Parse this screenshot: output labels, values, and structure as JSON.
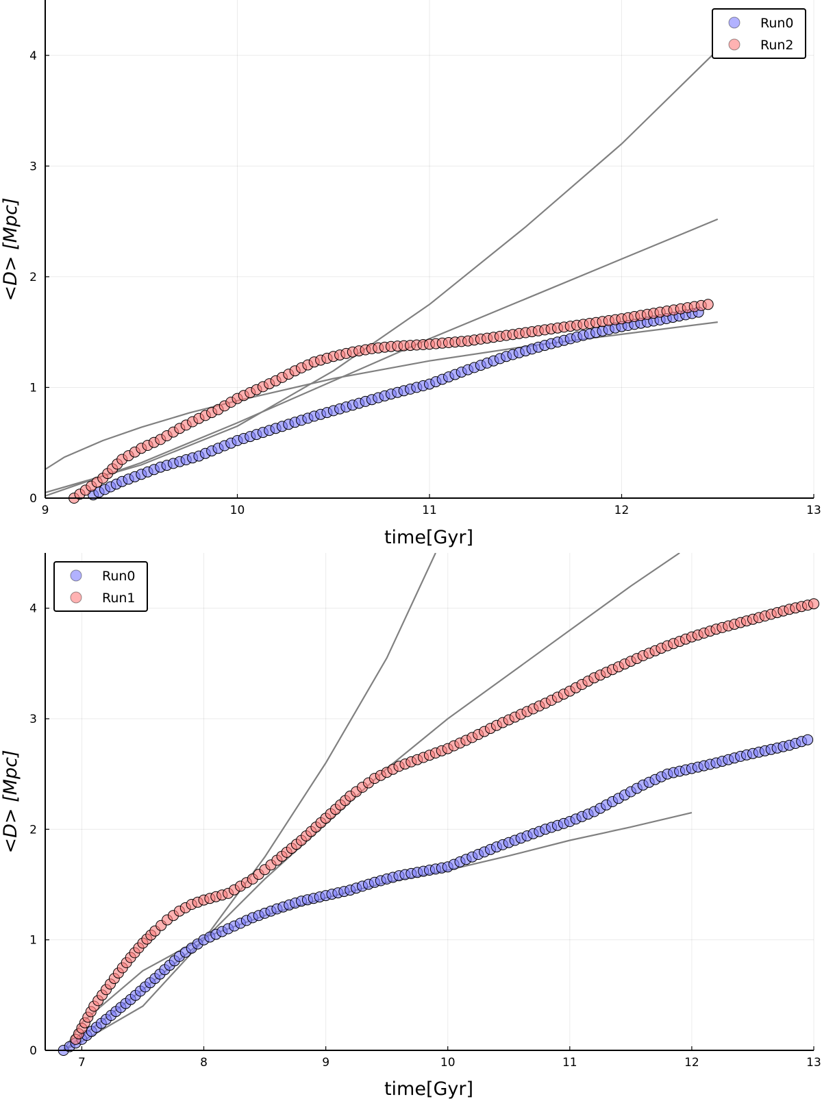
{
  "chart_data": [
    {
      "type": "scatter",
      "xlabel": "time[Gyr]",
      "ylabel": "<D> [Mpc]",
      "xlim": [
        9,
        13
      ],
      "ylim": [
        0,
        4.5
      ],
      "xticks": [
        "9",
        "10",
        "11",
        "12",
        "13"
      ],
      "yticks": [
        "0",
        "1",
        "2",
        "3",
        "4"
      ],
      "grid": true,
      "legend_position": "top-right",
      "series": [
        {
          "name": "Run0",
          "color": "#7f7fff",
          "x": [
            9.25,
            9.4,
            9.6,
            9.8,
            10.0,
            10.2,
            10.4,
            10.6,
            10.8,
            11.0,
            11.2,
            11.4,
            11.6,
            11.8,
            12.0,
            12.2,
            12.4
          ],
          "y": [
            0.03,
            0.15,
            0.28,
            0.38,
            0.52,
            0.63,
            0.74,
            0.84,
            0.94,
            1.03,
            1.16,
            1.28,
            1.38,
            1.47,
            1.55,
            1.61,
            1.68
          ]
        },
        {
          "name": "Run2",
          "color": "#ff7f7f",
          "x": [
            9.15,
            9.3,
            9.4,
            9.5,
            9.6,
            9.7,
            9.8,
            9.9,
            10.0,
            10.1,
            10.2,
            10.3,
            10.4,
            10.5,
            10.6,
            10.7,
            10.8,
            11.0,
            11.2,
            11.4,
            11.6,
            11.8,
            12.0,
            12.2,
            12.45
          ],
          "y": [
            0.0,
            0.18,
            0.35,
            0.45,
            0.53,
            0.63,
            0.72,
            0.8,
            0.9,
            0.98,
            1.06,
            1.15,
            1.23,
            1.28,
            1.32,
            1.35,
            1.37,
            1.39,
            1.42,
            1.47,
            1.52,
            1.57,
            1.62,
            1.68,
            1.75
          ]
        }
      ],
      "reference_lines": [
        {
          "x": [
            9.0,
            9.5,
            10.0,
            10.5,
            11.0,
            11.5,
            12.0,
            12.5
          ],
          "y": [
            0.05,
            0.3,
            0.65,
            1.15,
            1.75,
            2.45,
            3.2,
            4.05
          ]
        },
        {
          "x": [
            9.0,
            9.5,
            10.0,
            10.5,
            11.0,
            11.5,
            12.0,
            12.5
          ],
          "y": [
            0.02,
            0.32,
            0.68,
            1.06,
            1.44,
            1.8,
            2.16,
            2.52
          ]
        },
        {
          "x": [
            9.0,
            9.1,
            9.3,
            9.5,
            9.75,
            10.0,
            10.5,
            11.0,
            11.5,
            12.0,
            12.5
          ],
          "y": [
            0.26,
            0.37,
            0.52,
            0.64,
            0.77,
            0.88,
            1.08,
            1.24,
            1.37,
            1.48,
            1.59
          ]
        }
      ]
    },
    {
      "type": "scatter",
      "xlabel": "time[Gyr]",
      "ylabel": "<D> [Mpc]",
      "xlim": [
        6.7,
        13
      ],
      "ylim": [
        0,
        4.5
      ],
      "xticks": [
        "7",
        "8",
        "9",
        "10",
        "11",
        "12",
        "13"
      ],
      "yticks": [
        "0",
        "1",
        "2",
        "3",
        "4"
      ],
      "grid": true,
      "legend_position": "top-left",
      "series": [
        {
          "name": "Run0",
          "color": "#7f7fff",
          "x": [
            6.85,
            7.0,
            7.2,
            7.4,
            7.6,
            7.8,
            8.0,
            8.2,
            8.4,
            8.6,
            8.8,
            9.0,
            9.2,
            9.4,
            9.6,
            9.8,
            10.0,
            10.2,
            10.4,
            10.6,
            10.8,
            11.0,
            11.2,
            11.4,
            11.6,
            11.8,
            12.0,
            12.2,
            12.4,
            12.6,
            12.8,
            12.95
          ],
          "y": [
            0.0,
            0.1,
            0.28,
            0.46,
            0.65,
            0.85,
            1.0,
            1.1,
            1.2,
            1.28,
            1.35,
            1.4,
            1.45,
            1.52,
            1.58,
            1.62,
            1.66,
            1.75,
            1.84,
            1.92,
            2.0,
            2.07,
            2.16,
            2.28,
            2.4,
            2.5,
            2.55,
            2.6,
            2.66,
            2.71,
            2.76,
            2.81
          ]
        },
        {
          "name": "Run1",
          "color": "#ff7f7f",
          "x": [
            6.95,
            7.0,
            7.05,
            7.1,
            7.2,
            7.3,
            7.4,
            7.5,
            7.6,
            7.7,
            7.8,
            7.9,
            8.0,
            8.2,
            8.4,
            8.6,
            8.8,
            9.0,
            9.2,
            9.4,
            9.6,
            9.8,
            10.0,
            10.2,
            10.4,
            10.6,
            10.8,
            11.0,
            11.2,
            11.4,
            11.6,
            11.8,
            12.0,
            12.2,
            12.4,
            12.6,
            12.8,
            13.0
          ],
          "y": [
            0.1,
            0.2,
            0.3,
            0.4,
            0.55,
            0.7,
            0.84,
            0.97,
            1.08,
            1.18,
            1.26,
            1.32,
            1.36,
            1.42,
            1.55,
            1.72,
            1.9,
            2.1,
            2.3,
            2.46,
            2.57,
            2.65,
            2.73,
            2.83,
            2.94,
            3.04,
            3.14,
            3.25,
            3.37,
            3.47,
            3.57,
            3.66,
            3.74,
            3.81,
            3.87,
            3.93,
            3.99,
            4.04
          ]
        }
      ],
      "reference_lines": [
        {
          "x": [
            6.85,
            7.0,
            7.5,
            8.0,
            8.5,
            9.0,
            9.5,
            9.9
          ],
          "y": [
            0.0,
            0.08,
            0.4,
            1.0,
            1.75,
            2.6,
            3.55,
            4.5
          ]
        },
        {
          "x": [
            6.85,
            7.5,
            8.0,
            8.5,
            9.0,
            9.5,
            10.0,
            10.5,
            11.0,
            11.5,
            11.9
          ],
          "y": [
            0.0,
            0.55,
            1.0,
            1.55,
            2.05,
            2.55,
            3.0,
            3.4,
            3.8,
            4.2,
            4.5
          ]
        },
        {
          "x": [
            6.85,
            7.0,
            7.5,
            8.0,
            8.5,
            9.0,
            9.5,
            10.0,
            10.5,
            11.0,
            11.5,
            12.0
          ],
          "y": [
            0.0,
            0.25,
            0.72,
            1.02,
            1.22,
            1.38,
            1.52,
            1.63,
            1.76,
            1.9,
            2.02,
            2.15
          ]
        }
      ]
    }
  ]
}
